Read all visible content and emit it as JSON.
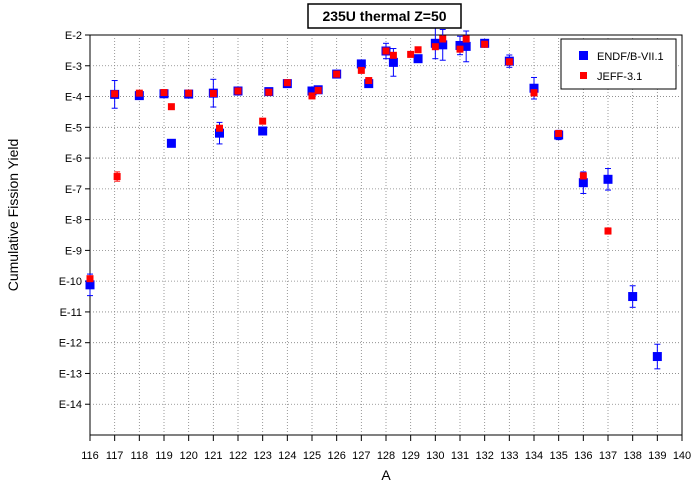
{
  "chart_data": {
    "type": "scatter",
    "title": "235U thermal Z=50",
    "xlabel": "A",
    "ylabel": "Cumulative Fission Yield",
    "xlim": [
      116,
      140
    ],
    "ylim_exponent": [
      -15,
      -2
    ],
    "y_scale": "log",
    "grid": true,
    "legend_position": "top-right",
    "x_ticks": [
      "116",
      "117",
      "118",
      "119",
      "120",
      "121",
      "122",
      "123",
      "124",
      "125",
      "126",
      "127",
      "128",
      "129",
      "130",
      "131",
      "132",
      "133",
      "134",
      "135",
      "136",
      "137",
      "138",
      "139",
      "140"
    ],
    "y_ticks": [
      "E-2",
      "E-3",
      "E-4",
      "E-5",
      "E-6",
      "E-7",
      "E-8",
      "E-9",
      "E-10",
      "E-11",
      "E-12",
      "E-13",
      "E-14"
    ],
    "series": [
      {
        "name": "ENDF/B-VII.1",
        "color": "#0000ff",
        "marker": "square",
        "points": [
          {
            "x": 116,
            "y": -10.12,
            "err": 0.35
          },
          {
            "x": 117,
            "y": -3.93,
            "err": 0.45
          },
          {
            "x": 118,
            "y": -3.97,
            "err": 0.1
          },
          {
            "x": 119,
            "y": -3.91,
            "err": 0.1
          },
          {
            "x": 119.3,
            "y": -5.52,
            "err": 0
          },
          {
            "x": 120,
            "y": -3.92,
            "err": 0.1
          },
          {
            "x": 121,
            "y": -3.89,
            "err": 0.45
          },
          {
            "x": 121.25,
            "y": -5.19,
            "err": 0.35
          },
          {
            "x": 122,
            "y": -3.82,
            "err": 0.1
          },
          {
            "x": 123,
            "y": -5.12,
            "err": 0
          },
          {
            "x": 123.25,
            "y": -3.84,
            "err": 0.1
          },
          {
            "x": 124,
            "y": -3.58,
            "err": 0.1
          },
          {
            "x": 125,
            "y": -3.82,
            "err": 0.1
          },
          {
            "x": 125.25,
            "y": -3.78,
            "err": 0.1
          },
          {
            "x": 126,
            "y": -3.27,
            "err": 0.1
          },
          {
            "x": 127,
            "y": -2.94,
            "err": 0.1
          },
          {
            "x": 127.3,
            "y": -3.58,
            "err": 0.1
          },
          {
            "x": 128,
            "y": -2.52,
            "err": 0.25
          },
          {
            "x": 128.3,
            "y": -2.89,
            "err": 0.45
          },
          {
            "x": 129.3,
            "y": -2.77,
            "err": 0.1
          },
          {
            "x": 130,
            "y": -2.27,
            "err": 0.5
          },
          {
            "x": 130.3,
            "y": -2.32,
            "err": 0.5
          },
          {
            "x": 131,
            "y": -2.34,
            "err": 0.3
          },
          {
            "x": 131.25,
            "y": -2.37,
            "err": 0.5
          },
          {
            "x": 132,
            "y": -2.27,
            "err": 0.1
          },
          {
            "x": 133,
            "y": -2.85,
            "err": 0.2
          },
          {
            "x": 134,
            "y": -3.73,
            "err": 0.35
          },
          {
            "x": 135,
            "y": -5.25,
            "err": 0.15
          },
          {
            "x": 136,
            "y": -6.8,
            "err": 0.35
          },
          {
            "x": 137,
            "y": -6.69,
            "err": 0.35
          },
          {
            "x": 138,
            "y": -10.5,
            "err": 0.35
          },
          {
            "x": 139,
            "y": -12.45,
            "err": 0.4
          }
        ]
      },
      {
        "name": "JEFF-3.1",
        "color": "#ff0000",
        "marker": "square",
        "points": [
          {
            "x": 116,
            "y": -9.92,
            "err": 0
          },
          {
            "x": 117.1,
            "y": -6.6,
            "err": 0.15
          },
          {
            "x": 117,
            "y": -3.91,
            "err": 0.05
          },
          {
            "x": 118,
            "y": -3.89,
            "err": 0.05
          },
          {
            "x": 119,
            "y": -3.87,
            "err": 0.05
          },
          {
            "x": 119.3,
            "y": -4.33,
            "err": 0
          },
          {
            "x": 120,
            "y": -3.89,
            "err": 0.05
          },
          {
            "x": 121,
            "y": -3.9,
            "err": 0.05
          },
          {
            "x": 121.25,
            "y": -5.03,
            "err": 0
          },
          {
            "x": 122,
            "y": -3.82,
            "err": 0.05
          },
          {
            "x": 123,
            "y": -4.8,
            "err": 0
          },
          {
            "x": 123.25,
            "y": -3.86,
            "err": 0.05
          },
          {
            "x": 124,
            "y": -3.55,
            "err": 0.05
          },
          {
            "x": 125,
            "y": -3.98,
            "err": 0.05
          },
          {
            "x": 125.25,
            "y": -3.8,
            "err": 0.05
          },
          {
            "x": 126,
            "y": -3.27,
            "err": 0.05
          },
          {
            "x": 127,
            "y": -3.15,
            "err": 0.05
          },
          {
            "x": 127.3,
            "y": -3.48,
            "err": 0.05
          },
          {
            "x": 128,
            "y": -2.52,
            "err": 0.05
          },
          {
            "x": 128.3,
            "y": -2.66,
            "err": 0.05
          },
          {
            "x": 129,
            "y": -2.63,
            "err": 0.05
          },
          {
            "x": 129.3,
            "y": -2.48,
            "err": 0.05
          },
          {
            "x": 130,
            "y": -2.38,
            "err": 0.05
          },
          {
            "x": 130.3,
            "y": -2.13,
            "err": 0.05
          },
          {
            "x": 131,
            "y": -2.46,
            "err": 0.05
          },
          {
            "x": 131.25,
            "y": -2.13,
            "err": 0.05
          },
          {
            "x": 132,
            "y": -2.3,
            "err": 0.05
          },
          {
            "x": 133,
            "y": -2.87,
            "err": 0.05
          },
          {
            "x": 134,
            "y": -3.88,
            "err": 0.1
          },
          {
            "x": 135,
            "y": -5.2,
            "err": 0.05
          },
          {
            "x": 136,
            "y": -6.58,
            "err": 0.1
          },
          {
            "x": 137,
            "y": -8.37,
            "err": 0.1
          }
        ]
      }
    ]
  }
}
